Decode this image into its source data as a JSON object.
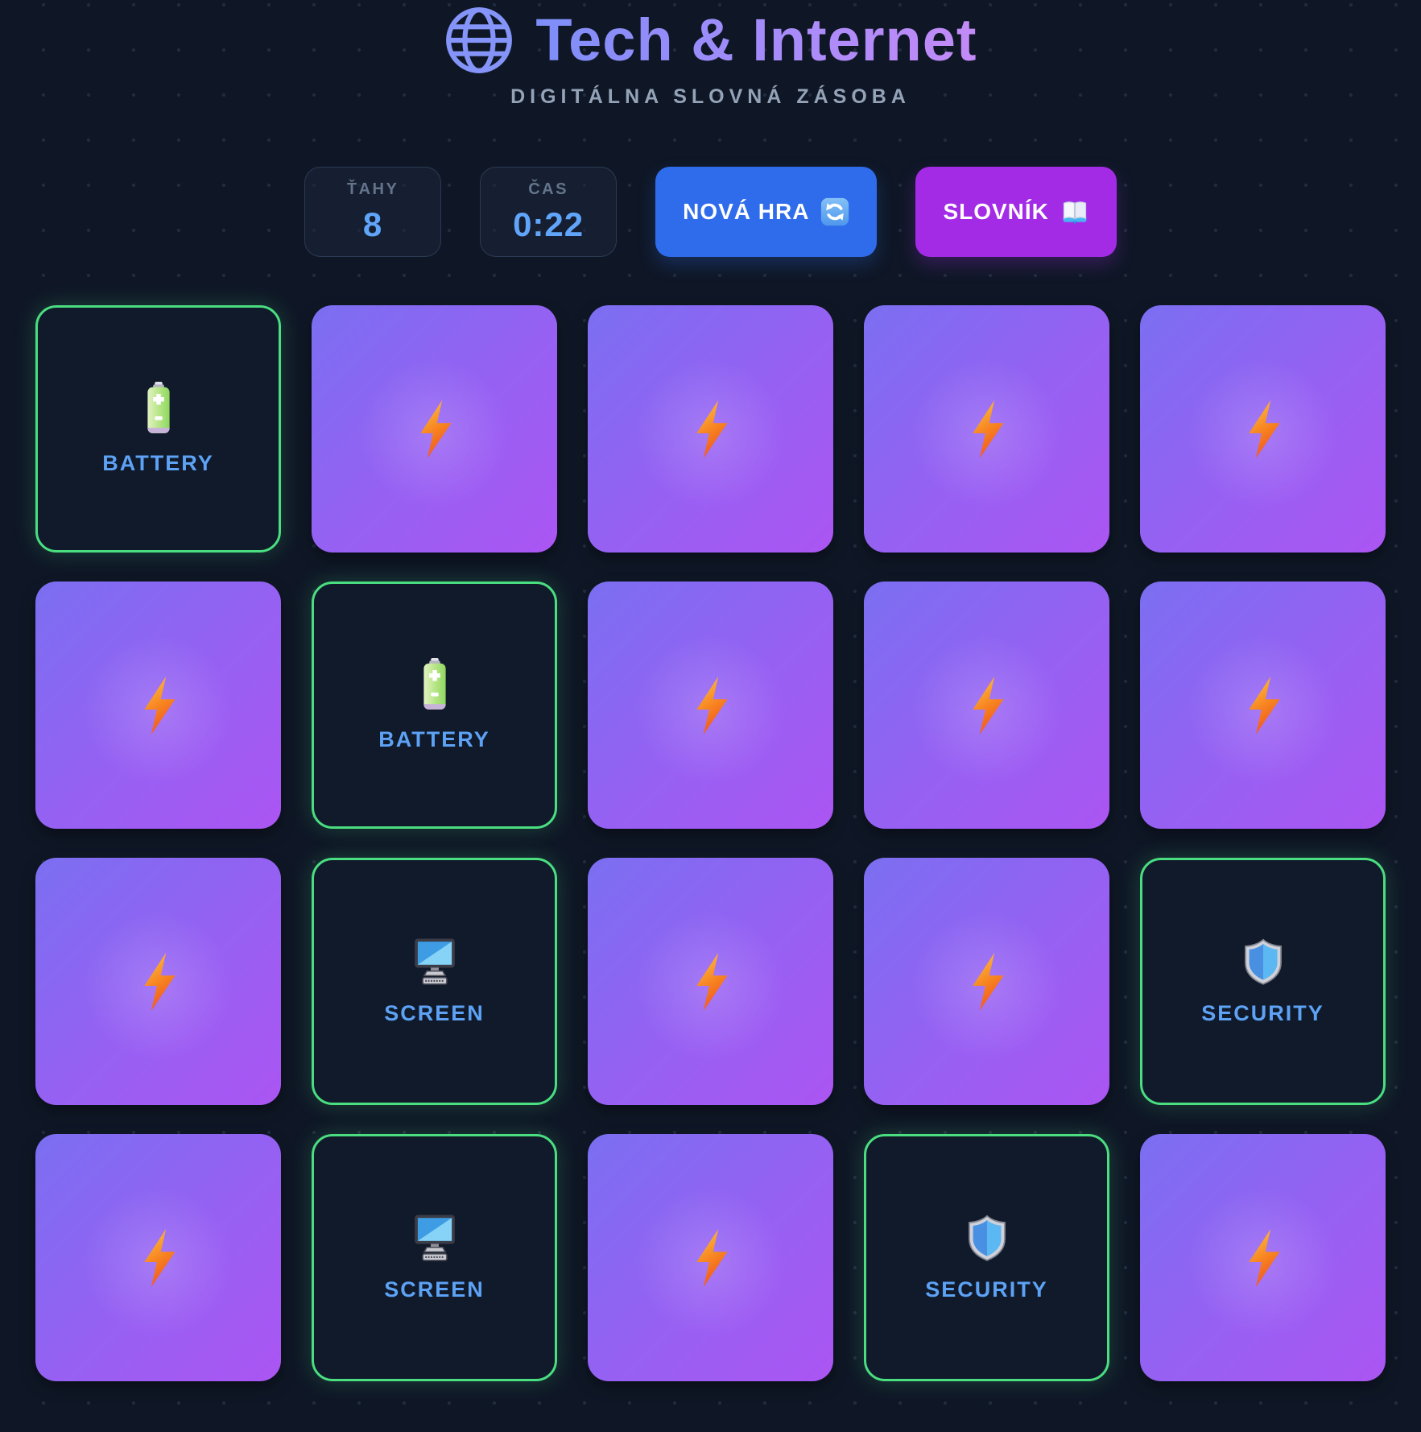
{
  "header": {
    "title": "Tech & Internet",
    "subtitle": "DIGITÁLNA SLOVNÁ ZÁSOBA",
    "globe_icon": "globe-icon"
  },
  "stats": {
    "moves": {
      "label": "ŤAHY",
      "value": "8"
    },
    "time": {
      "label": "ČAS",
      "value": "0:22"
    }
  },
  "toolbar": {
    "new_game_label": "NOVÁ HRA",
    "new_game_icon": "refresh-icon",
    "dictionary_label": "SLOVNÍK",
    "dictionary_icon": "open-book-icon"
  },
  "colors": {
    "page_bg": "#0f1726",
    "accent_blue": "#60a5fa",
    "matched_green": "#4ade80",
    "card_grad_start": "#7b6ff1",
    "card_grad_end": "#ab55f3",
    "btn_new": "#2f6ceb",
    "btn_dict": "#a32be6",
    "title_grad_start": "#7d8ef9",
    "title_grad_end": "#c38bf7",
    "label_gray": "#64748b",
    "subtitle_gray": "#94a3b8"
  },
  "grid": {
    "columns": 5,
    "rows": 4,
    "facedown_icon": "lightning-bolt-icon",
    "cards": [
      {
        "state": "flipped",
        "word": "BATTERY",
        "icon": "battery-icon"
      },
      {
        "state": "down"
      },
      {
        "state": "down"
      },
      {
        "state": "down"
      },
      {
        "state": "down"
      },
      {
        "state": "down"
      },
      {
        "state": "flipped",
        "word": "BATTERY",
        "icon": "battery-icon"
      },
      {
        "state": "down"
      },
      {
        "state": "down"
      },
      {
        "state": "down"
      },
      {
        "state": "down"
      },
      {
        "state": "flipped",
        "word": "SCREEN",
        "icon": "screen-icon"
      },
      {
        "state": "down"
      },
      {
        "state": "down"
      },
      {
        "state": "flipped",
        "word": "SECURITY",
        "icon": "shield-icon"
      },
      {
        "state": "down"
      },
      {
        "state": "flipped",
        "word": "SCREEN",
        "icon": "screen-icon"
      },
      {
        "state": "down"
      },
      {
        "state": "flipped",
        "word": "SECURITY",
        "icon": "shield-icon"
      },
      {
        "state": "down"
      }
    ]
  }
}
